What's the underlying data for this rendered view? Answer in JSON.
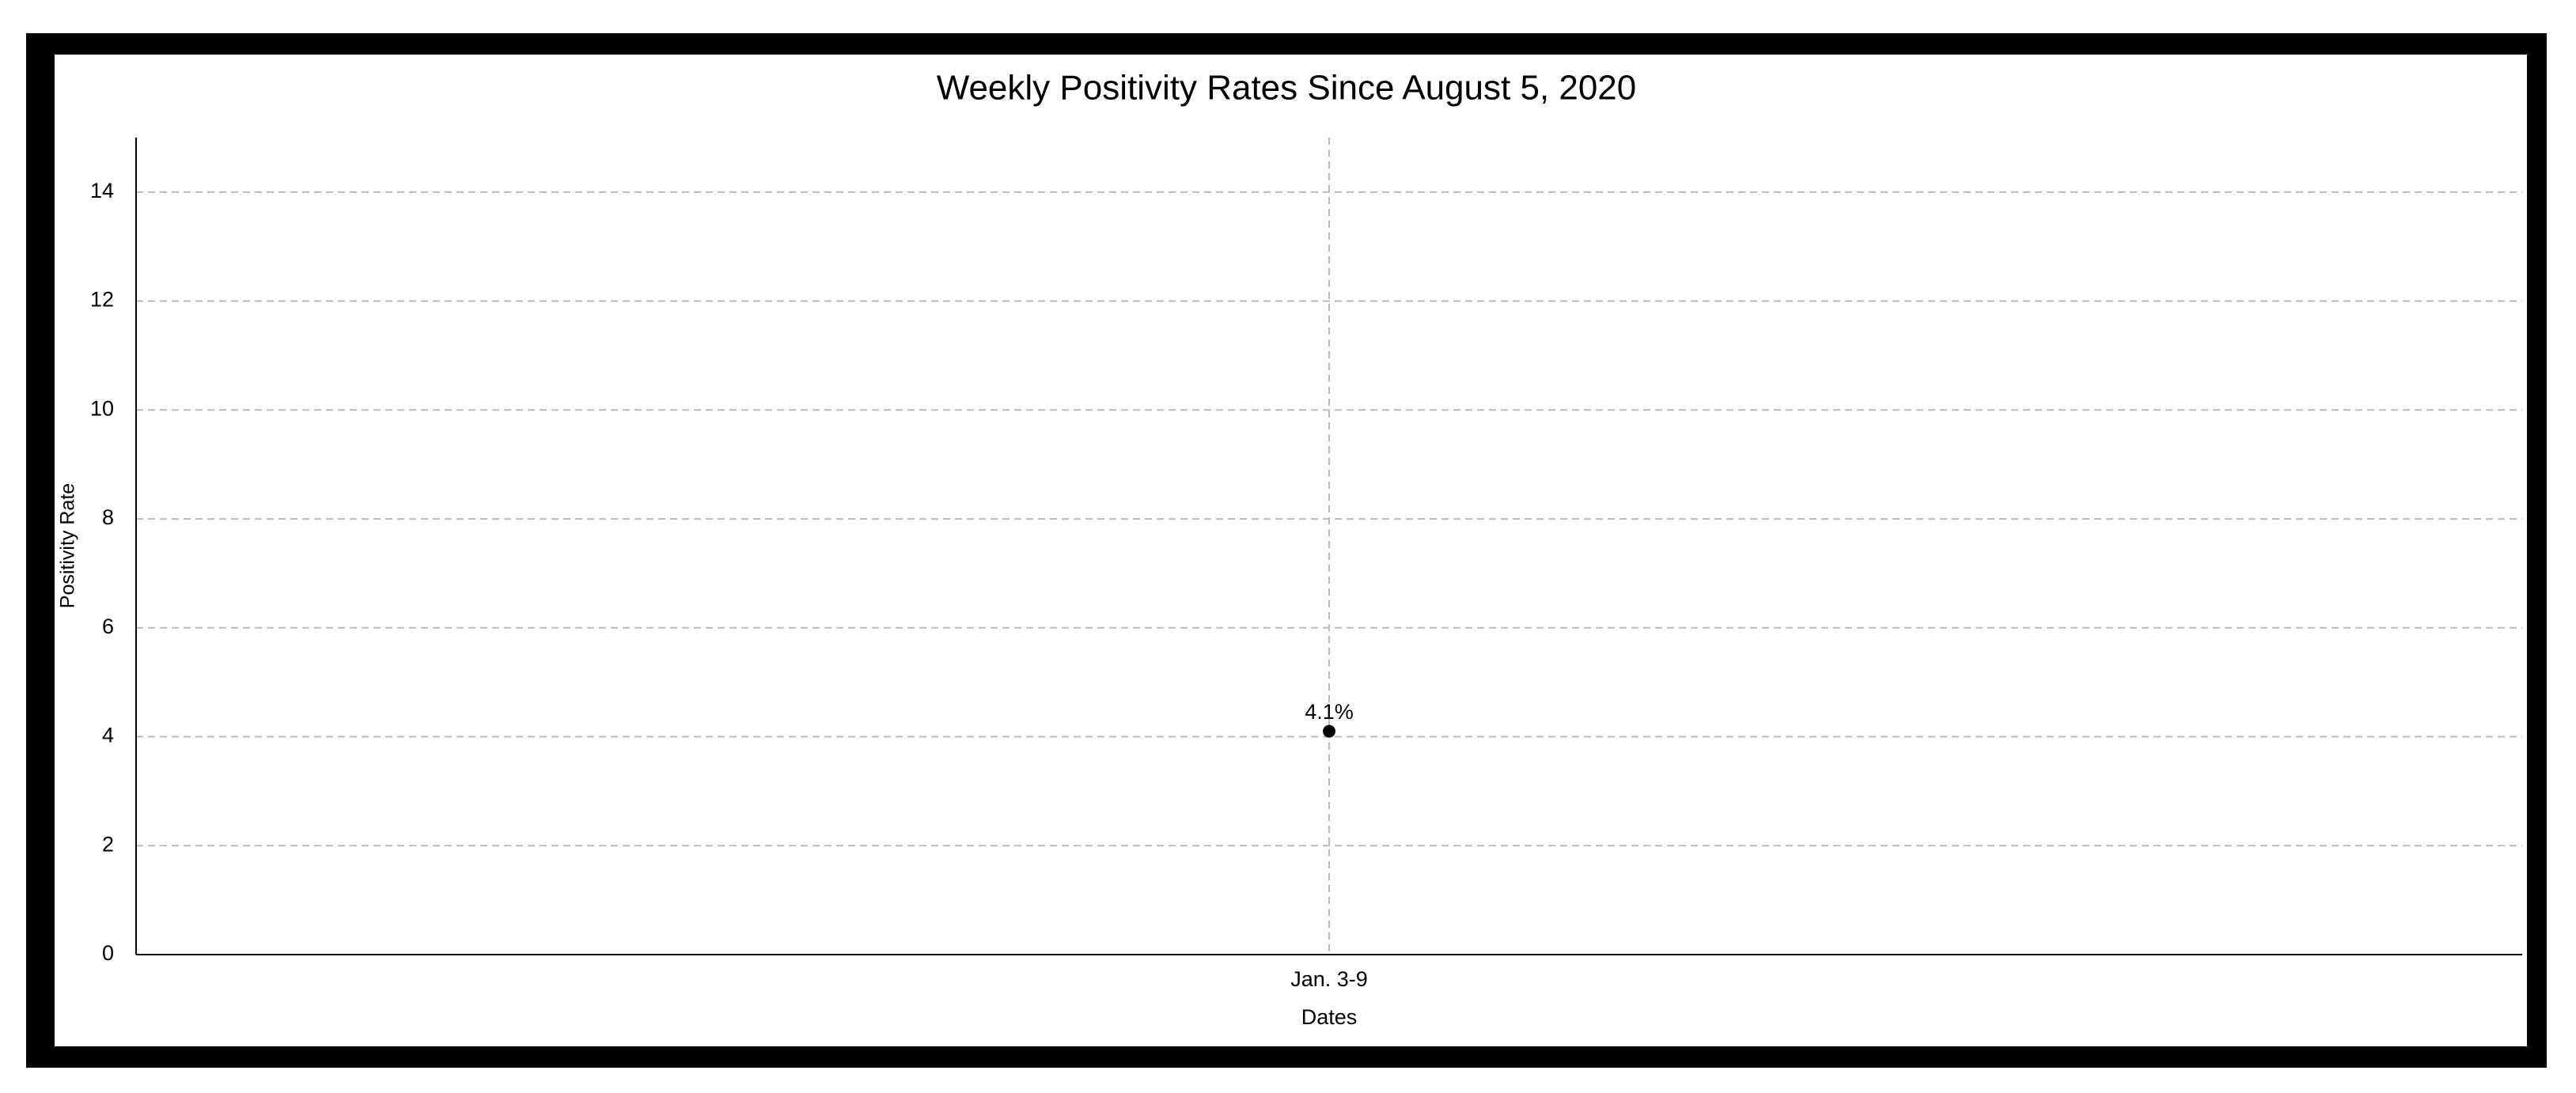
{
  "chart_data": {
    "type": "line",
    "title": "Weekly Positivity Rates Since August 5, 2020",
    "x_label": "Dates",
    "y_label": "Positivity Rate",
    "categories": [
      "Jan. 3-9"
    ],
    "values": [
      4.1
    ],
    "value_labels": [
      "4.1%"
    ],
    "color": "#000000",
    "ylim": [
      0,
      15
    ],
    "yticks": [
      0,
      2,
      4,
      6,
      8,
      10,
      12,
      14
    ],
    "grid": true
  }
}
